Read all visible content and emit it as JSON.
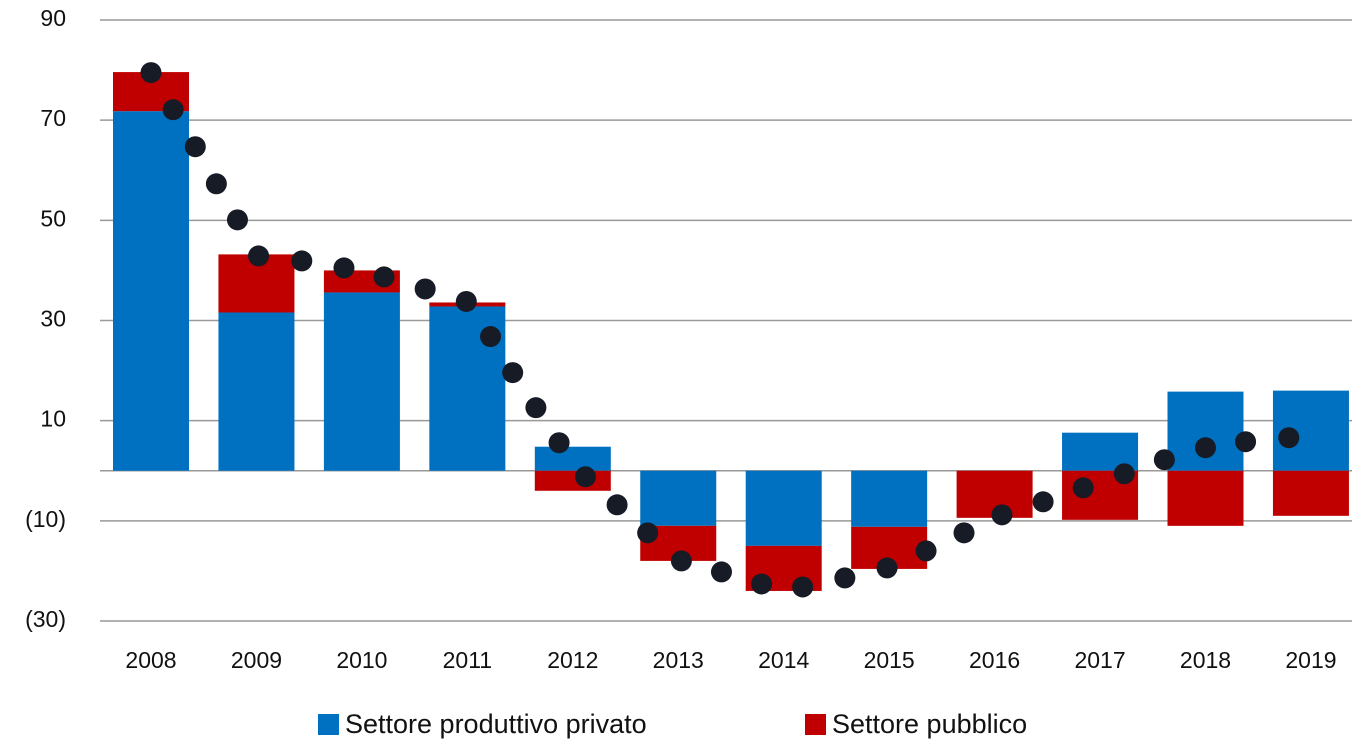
{
  "chart_data": {
    "type": "bar",
    "stacked": true,
    "categories": [
      "2008",
      "2009",
      "2010",
      "2011",
      "2012",
      "2013",
      "2014",
      "2015",
      "2016",
      "2017",
      "2018",
      "2019"
    ],
    "series": [
      {
        "name": "Settore produttivo privato",
        "color": "#0070c0",
        "values": [
          71.8,
          31.6,
          35.6,
          32.8,
          4.8,
          -11,
          -15,
          -11.2,
          0,
          7.6,
          15.8,
          16
        ]
      },
      {
        "name": "Settore pubblico",
        "color": "#c00000",
        "values": [
          7.8,
          11.6,
          4.4,
          0.8,
          -4,
          -7,
          -9,
          -8.4,
          -9.4,
          -9.8,
          -11,
          -9
        ]
      }
    ],
    "points": {
      "color": "#161b26",
      "x": [
        2008.0,
        2008.21,
        2008.42,
        2008.62,
        2008.82,
        2009.02,
        2009.43,
        2009.83,
        2010.21,
        2010.6,
        2010.99,
        2011.22,
        2011.43,
        2011.65,
        2011.87,
        2012.12,
        2012.42,
        2012.71,
        2013.03,
        2013.41,
        2013.79,
        2014.18,
        2014.58,
        2014.98,
        2015.35,
        2015.71,
        2016.07,
        2016.46,
        2016.84,
        2017.23,
        2017.61,
        2018.0,
        2018.38,
        2018.79
      ],
      "values": [
        79.5,
        72.1,
        64.7,
        57.3,
        50.1,
        42.9,
        41.9,
        40.5,
        38.7,
        36.3,
        33.8,
        26.8,
        19.6,
        12.6,
        5.6,
        -1.2,
        -6.8,
        -12.4,
        -18.0,
        -20.2,
        -22.6,
        -23.2,
        -21.4,
        -19.4,
        -16.0,
        -12.4,
        -8.8,
        -6.2,
        -3.4,
        -0.6,
        2.2,
        4.6,
        5.8,
        6.6
      ]
    },
    "ylim": [
      -30,
      90
    ],
    "yticks": [
      {
        "value": -30,
        "label": "(30)"
      },
      {
        "value": -10,
        "label": "(10)"
      },
      10,
      30,
      50,
      70,
      90
    ],
    "grid": true,
    "legend": "bottom"
  }
}
